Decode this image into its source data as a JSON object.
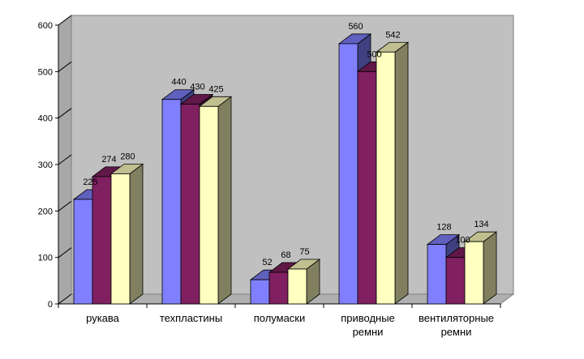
{
  "chart_data": {
    "type": "bar",
    "categories": [
      "рукава",
      "техпластины",
      "полумаски",
      "приводные ремни",
      "вентиляторные ремни"
    ],
    "category_lines": [
      [
        "рукава"
      ],
      [
        "техпластины"
      ],
      [
        "полумаски"
      ],
      [
        "приводные",
        "ремни"
      ],
      [
        "вентиляторные",
        "ремни"
      ]
    ],
    "series": [
      {
        "values": [
          225,
          440,
          52,
          560,
          128
        ],
        "color": "#8080FF"
      },
      {
        "values": [
          274,
          430,
          68,
          500,
          100
        ],
        "color": "#802060"
      },
      {
        "values": [
          280,
          425,
          75,
          542,
          134
        ],
        "color": "#FFFFC0"
      }
    ],
    "yticks": [
      0,
      100,
      200,
      300,
      400,
      500,
      600
    ],
    "ylim": [
      0,
      600
    ],
    "title": "",
    "xlabel": "",
    "ylabel": "",
    "grid": false,
    "legend": "none",
    "style": "3d-clustered",
    "wall_color": "#C0C0C0"
  }
}
